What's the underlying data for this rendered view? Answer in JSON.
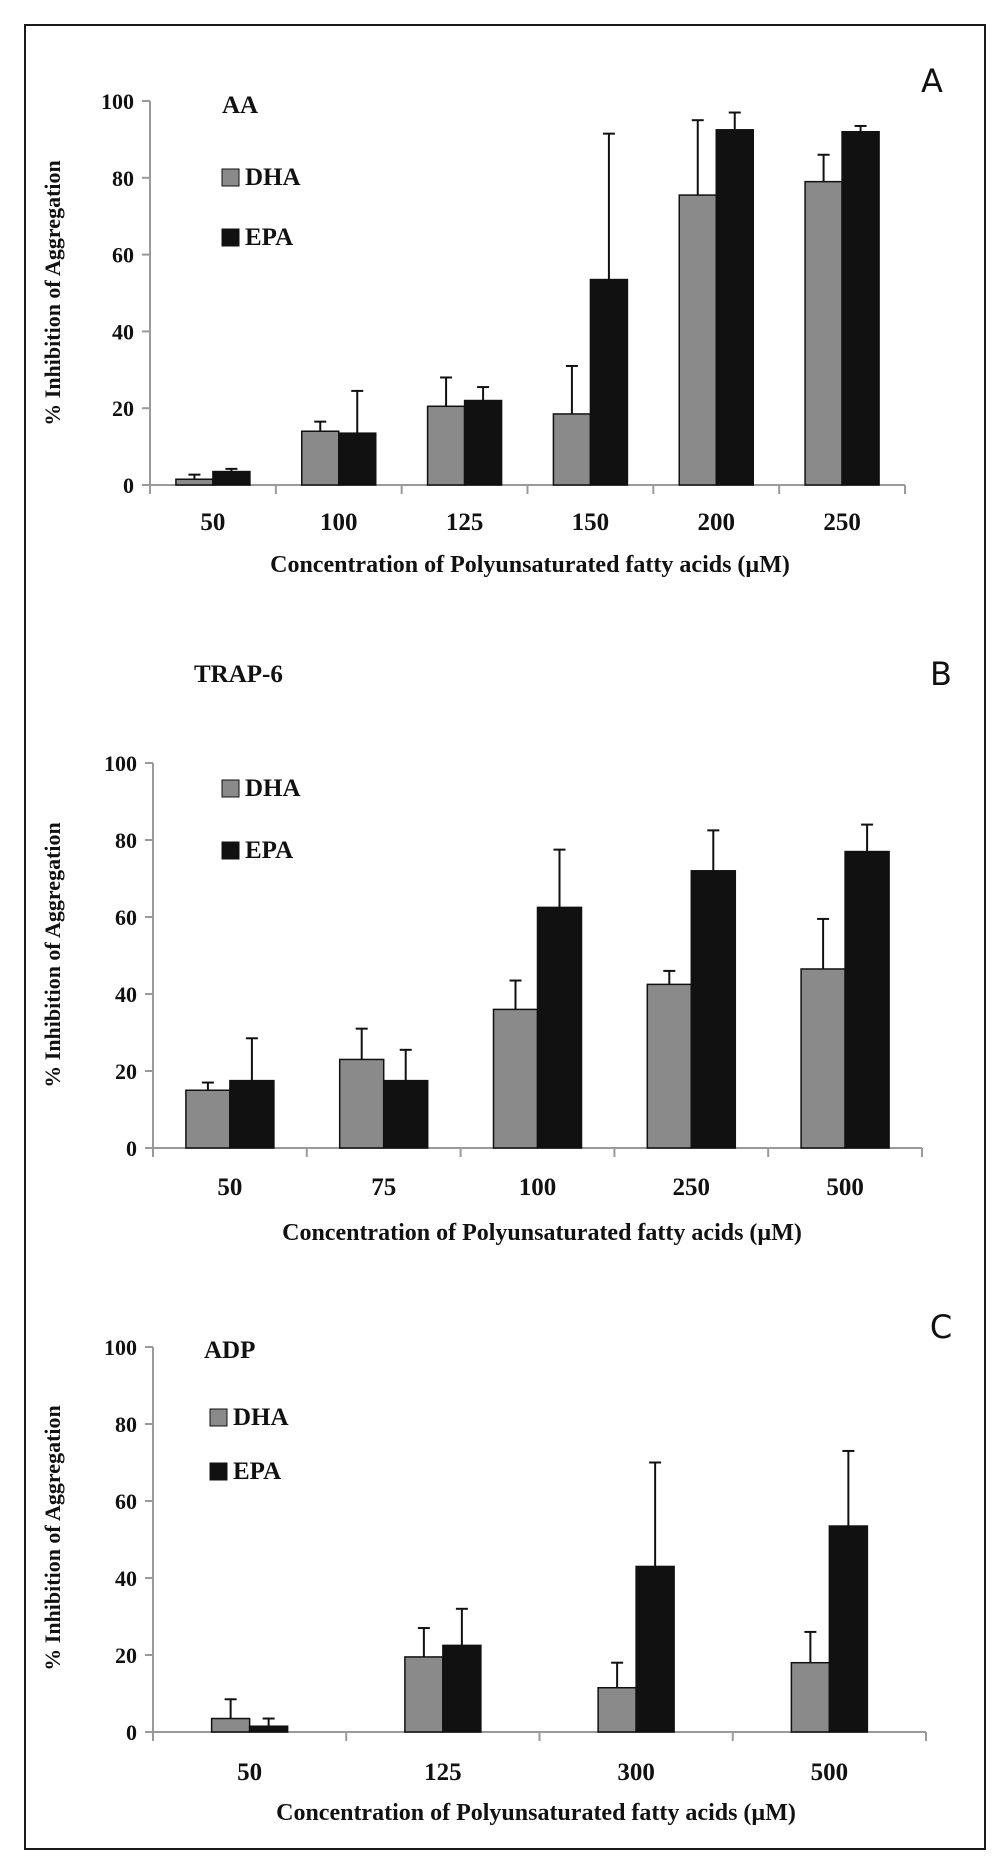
{
  "colors": {
    "DHA": "#8a8a8a",
    "EPA": "#111111",
    "axis": "#9a9a9a"
  },
  "chart_data": [
    {
      "type": "bar",
      "panel_letter": "A",
      "title": "AA",
      "xlabel": "Concentration of Polyunsaturated fatty acids  (µM)",
      "ylabel": "% Inhibition of Aggregation",
      "ylim": [
        0,
        100
      ],
      "yticks": [
        "0",
        "20",
        "40",
        "60",
        "80",
        "100"
      ],
      "categories": [
        "50",
        "100",
        "125",
        "150",
        "200",
        "250"
      ],
      "legend_position": "top-left",
      "grid": false,
      "series": [
        {
          "name": "DHA",
          "values": [
            1.5,
            14,
            20.5,
            18.5,
            75.5,
            79
          ],
          "error_plus": [
            1.2,
            2.5,
            7.5,
            12.5,
            19.5,
            7
          ]
        },
        {
          "name": "EPA",
          "values": [
            3.5,
            13.5,
            22,
            53.5,
            92.5,
            92
          ],
          "error_plus": [
            0.7,
            11,
            3.5,
            38,
            4.5,
            1.5
          ]
        }
      ]
    },
    {
      "type": "bar",
      "panel_letter": "B",
      "title": "TRAP-6",
      "xlabel": "Concentration of Polyunsaturated fatty acids  (µM)",
      "ylabel": "% Inhibition of Aggregation",
      "ylim": [
        0,
        100
      ],
      "yticks": [
        "0",
        "20",
        "40",
        "60",
        "80",
        "100"
      ],
      "categories": [
        "50",
        "75",
        "100",
        "250",
        "500"
      ],
      "legend_position": "top-left",
      "grid": false,
      "series": [
        {
          "name": "DHA",
          "values": [
            15,
            23,
            36,
            42.5,
            46.5
          ],
          "error_plus": [
            2,
            8,
            7.5,
            3.5,
            13
          ]
        },
        {
          "name": "EPA",
          "values": [
            17.5,
            17.5,
            62.5,
            72,
            77
          ],
          "error_plus": [
            11,
            8,
            15,
            10.5,
            7
          ]
        }
      ]
    },
    {
      "type": "bar",
      "panel_letter": "C",
      "title": "ADP",
      "xlabel": "Concentration of Polyunsaturated fatty acids  (µM)",
      "ylabel": "% Inhibition of Aggregation",
      "ylim": [
        0,
        100
      ],
      "yticks": [
        "0",
        "20",
        "40",
        "60",
        "80",
        "100"
      ],
      "categories": [
        "50",
        "125",
        "300",
        "500"
      ],
      "legend_position": "top-left",
      "grid": false,
      "series": [
        {
          "name": "DHA",
          "values": [
            3.5,
            19.5,
            11.5,
            18
          ],
          "error_plus": [
            5,
            7.5,
            6.5,
            8
          ]
        },
        {
          "name": "EPA",
          "values": [
            1.5,
            22.5,
            43,
            53.5
          ],
          "error_plus": [
            2,
            9.5,
            27,
            19.5
          ]
        }
      ]
    }
  ]
}
